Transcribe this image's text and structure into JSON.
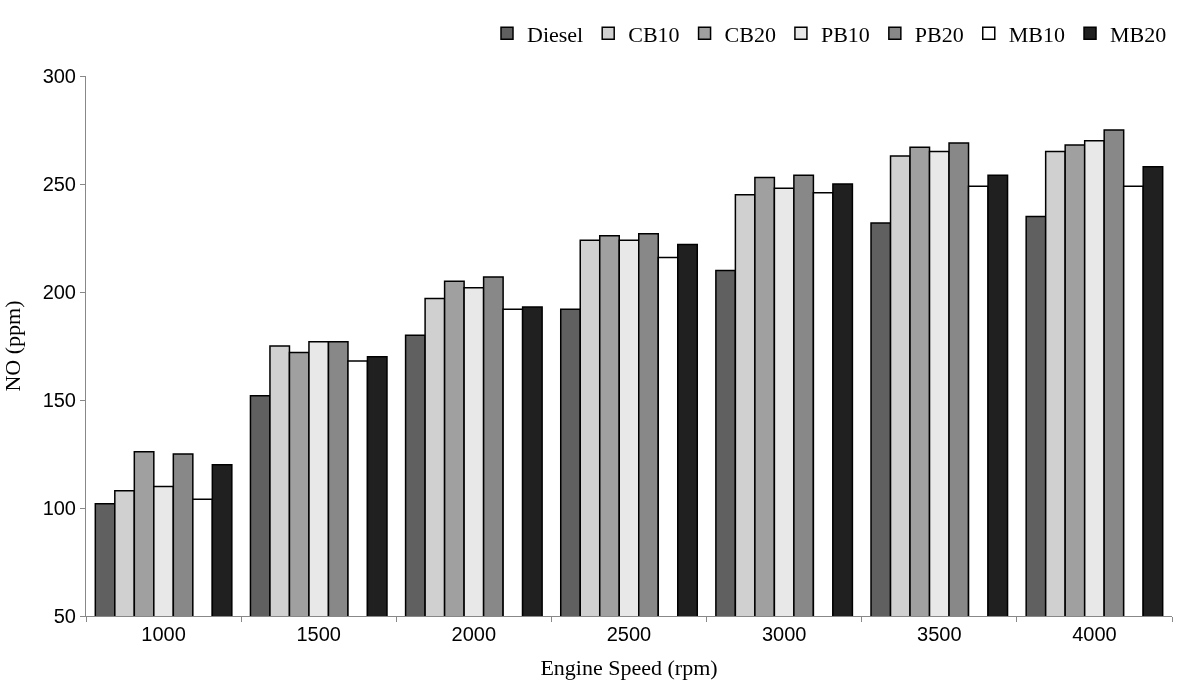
{
  "chart_data": {
    "type": "bar",
    "xlabel": "Engine Speed (rpm)",
    "ylabel": "NO (ppm)",
    "categories": [
      "1000",
      "1500",
      "2000",
      "2500",
      "3000",
      "3500",
      "4000"
    ],
    "ylim": [
      50,
      300
    ],
    "yticks": [
      50,
      100,
      150,
      200,
      250,
      300
    ],
    "legend": "top right",
    "series": [
      {
        "name": "Diesel",
        "color": "#606060",
        "values": [
          102,
          152,
          180,
          192,
          210,
          232,
          235
        ]
      },
      {
        "name": "CB10",
        "color": "#d0d0d0",
        "values": [
          108,
          175,
          197,
          224,
          245,
          263,
          265
        ]
      },
      {
        "name": "CB20",
        "color": "#a0a0a0",
        "values": [
          126,
          172,
          205,
          226,
          253,
          267,
          268
        ]
      },
      {
        "name": "PB10",
        "color": "#e8e8e8",
        "values": [
          110,
          177,
          202,
          224,
          248,
          265,
          270
        ]
      },
      {
        "name": "PB20",
        "color": "#888888",
        "values": [
          125,
          177,
          207,
          227,
          254,
          269,
          275
        ]
      },
      {
        "name": "MB10",
        "color": "#ffffff",
        "values": [
          104,
          168,
          192,
          216,
          246,
          249,
          249
        ]
      },
      {
        "name": "MB20",
        "color": "#202020",
        "values": [
          120,
          170,
          193,
          222,
          250,
          254,
          258
        ]
      }
    ]
  }
}
